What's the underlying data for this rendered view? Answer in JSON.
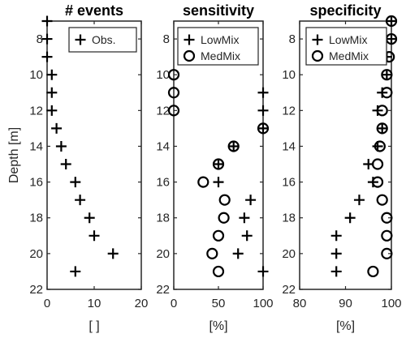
{
  "chart_data": [
    {
      "type": "scatter",
      "title": "# events",
      "xlabel": "[ ]",
      "ylabel": "Depth  [m]",
      "xlim": [
        0,
        20
      ],
      "ylim": [
        22,
        7
      ],
      "y_reversed": true,
      "xticks": [
        0,
        10,
        20
      ],
      "yticks": [
        8,
        10,
        12,
        14,
        16,
        18,
        20,
        22
      ],
      "grid": false,
      "legend_placement": "top-right",
      "series": [
        {
          "name": "Obs.",
          "marker": "plus",
          "points": [
            [
              0,
              7
            ],
            [
              0,
              8
            ],
            [
              0,
              9
            ],
            [
              1,
              10
            ],
            [
              1,
              11
            ],
            [
              1,
              12
            ],
            [
              2,
              13
            ],
            [
              3,
              14
            ],
            [
              4,
              15
            ],
            [
              6,
              16
            ],
            [
              7,
              17
            ],
            [
              9,
              18
            ],
            [
              10,
              19
            ],
            [
              14,
              20
            ],
            [
              6,
              21
            ]
          ]
        }
      ]
    },
    {
      "type": "scatter",
      "title": "sensitivity",
      "xlabel": "[%]",
      "xlim": [
        0,
        100
      ],
      "ylim": [
        22,
        7
      ],
      "y_reversed": true,
      "xticks": [
        0,
        50,
        100
      ],
      "yticks": [
        8,
        10,
        12,
        14,
        16,
        18,
        20,
        22
      ],
      "grid": false,
      "legend_placement": "top-right",
      "series": [
        {
          "name": "LowMix",
          "marker": "plus",
          "points": [
            [
              100,
              11
            ],
            [
              100,
              12
            ],
            [
              100,
              13
            ],
            [
              67,
              14
            ],
            [
              50,
              15
            ],
            [
              50,
              16
            ],
            [
              86,
              17
            ],
            [
              79,
              18
            ],
            [
              82,
              19
            ],
            [
              72,
              20
            ],
            [
              100,
              21
            ]
          ]
        },
        {
          "name": "MedMix",
          "marker": "circle",
          "points": [
            [
              0,
              10
            ],
            [
              0,
              11
            ],
            [
              0,
              12
            ],
            [
              100,
              13
            ],
            [
              67,
              14
            ],
            [
              50,
              15
            ],
            [
              33,
              16
            ],
            [
              57,
              17
            ],
            [
              56,
              18
            ],
            [
              50,
              19
            ],
            [
              43,
              20
            ],
            [
              50,
              21
            ]
          ]
        }
      ]
    },
    {
      "type": "scatter",
      "title": "specificity",
      "xlabel": "[%]",
      "xlim": [
        80,
        100
      ],
      "ylim": [
        22,
        7
      ],
      "y_reversed": true,
      "xticks": [
        80,
        90,
        100
      ],
      "yticks": [
        8,
        10,
        12,
        14,
        16,
        18,
        20,
        22
      ],
      "grid": false,
      "legend_placement": "top-right",
      "series": [
        {
          "name": "LowMix",
          "marker": "plus",
          "points": [
            [
              100,
              7
            ],
            [
              100,
              8
            ],
            [
              99,
              9
            ],
            [
              99,
              10
            ],
            [
              98,
              11
            ],
            [
              97,
              12
            ],
            [
              98,
              13
            ],
            [
              97,
              14
            ],
            [
              95,
              15
            ],
            [
              96,
              16
            ],
            [
              93,
              17
            ],
            [
              91,
              18
            ],
            [
              88,
              19
            ],
            [
              88,
              20
            ],
            [
              88,
              21
            ]
          ]
        },
        {
          "name": "MedMix",
          "marker": "circle",
          "points": [
            [
              100,
              7
            ],
            [
              100,
              8
            ],
            [
              99.5,
              9
            ],
            [
              99,
              10
            ],
            [
              99,
              11
            ],
            [
              98,
              12
            ],
            [
              98,
              13
            ],
            [
              97.5,
              14
            ],
            [
              97,
              15
            ],
            [
              97,
              16
            ],
            [
              98,
              17
            ],
            [
              99,
              18
            ],
            [
              99,
              19
            ],
            [
              99,
              20
            ],
            [
              96,
              21
            ]
          ]
        }
      ]
    }
  ]
}
